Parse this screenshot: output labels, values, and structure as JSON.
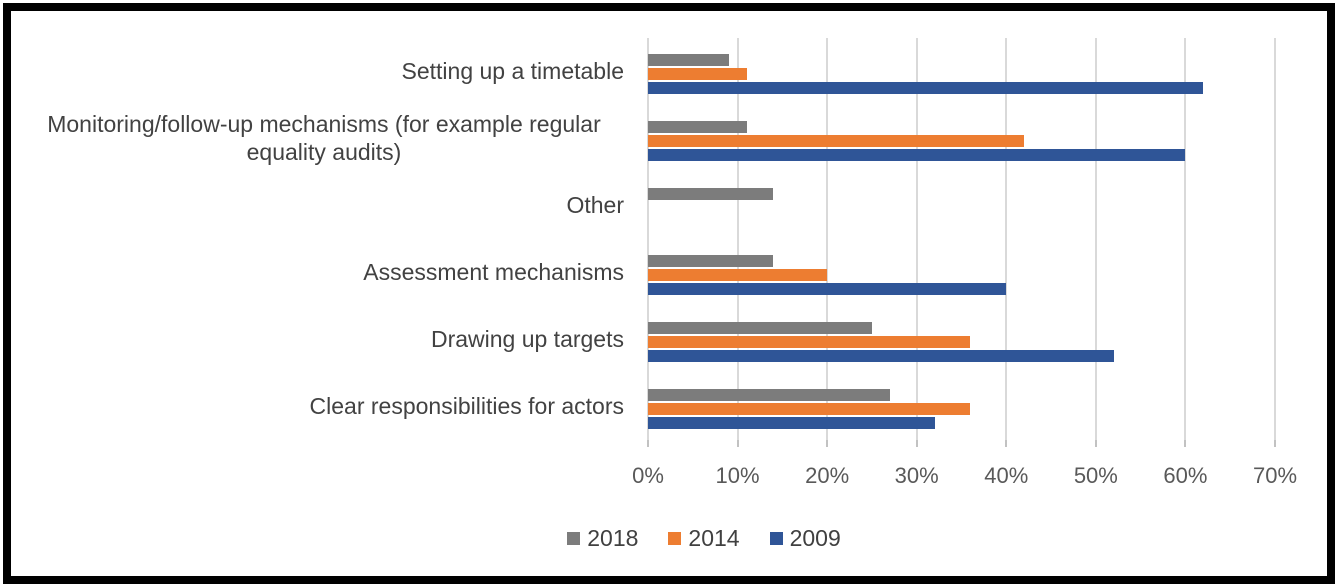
{
  "chart_data": {
    "type": "bar",
    "orientation": "horizontal",
    "title": "",
    "xlabel": "",
    "ylabel": "",
    "xlim": [
      0,
      70
    ],
    "grid": true,
    "legend_position": "bottom",
    "axis": {
      "tick_labels": [
        "0%",
        "10%",
        "20%",
        "30%",
        "40%",
        "50%",
        "60%",
        "70%"
      ],
      "tick_values": [
        0,
        10,
        20,
        30,
        40,
        50,
        60,
        70
      ]
    },
    "categories": [
      "Setting up a timetable",
      "Monitoring/follow-up mechanisms (for example regular equality audits)",
      "Other",
      "Assessment mechanisms",
      "Drawing up targets",
      "Clear responsibilities for actors"
    ],
    "series": [
      {
        "name": "2018",
        "color": "#7C7C7C",
        "values": [
          9,
          11,
          14,
          14,
          25,
          27
        ]
      },
      {
        "name": "2014",
        "color": "#ED7D31",
        "values": [
          11,
          42,
          0,
          20,
          36,
          36
        ]
      },
      {
        "name": "2009",
        "color": "#2F5597",
        "values": [
          62,
          60,
          0,
          40,
          52,
          32
        ]
      }
    ],
    "unit": "%"
  },
  "colors": {
    "frame_border": "#000000",
    "background": "#ffffff",
    "gridline": "#d9d9d9",
    "axis_text": "#595959",
    "category_text": "#424242",
    "legend_text": "#404040"
  }
}
